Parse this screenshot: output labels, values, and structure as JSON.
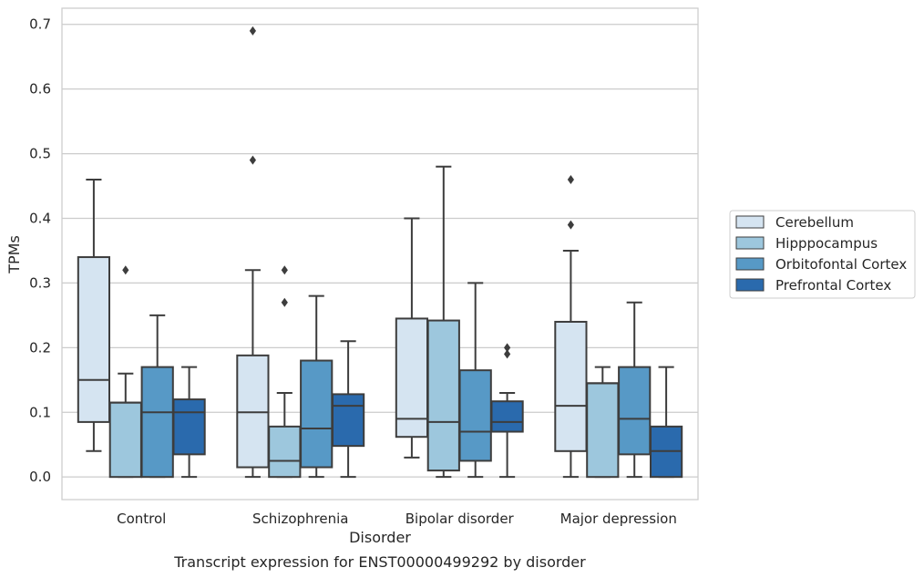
{
  "chart_data": {
    "type": "box",
    "caption": "Transcript expression for ENST00000499292 by disorder",
    "xlabel": "Disorder",
    "ylabel": "TPMs",
    "ylim": [
      -0.035,
      0.725
    ],
    "yticks": [
      "0.0",
      "0.1",
      "0.2",
      "0.3",
      "0.4",
      "0.5",
      "0.6",
      "0.7"
    ],
    "grid": true,
    "legend_position": "right",
    "categories": [
      "Control",
      "Schizophrenia",
      "Bipolar disorder",
      "Major depression"
    ],
    "series": [
      {
        "name": "Cerebellum",
        "color": "#d5e4f1",
        "boxes": [
          {
            "whisker_low": 0.04,
            "q1": 0.085,
            "median": 0.15,
            "q3": 0.34,
            "whisker_high": 0.46,
            "outliers": []
          },
          {
            "whisker_low": 0.0,
            "q1": 0.015,
            "median": 0.1,
            "q3": 0.188,
            "whisker_high": 0.32,
            "outliers": [
              0.49,
              0.69
            ]
          },
          {
            "whisker_low": 0.03,
            "q1": 0.062,
            "median": 0.09,
            "q3": 0.245,
            "whisker_high": 0.4,
            "outliers": []
          },
          {
            "whisker_low": 0.0,
            "q1": 0.04,
            "median": 0.11,
            "q3": 0.24,
            "whisker_high": 0.35,
            "outliers": [
              0.39,
              0.46
            ]
          }
        ]
      },
      {
        "name": "Hipppocampus",
        "color": "#9dc7dd",
        "boxes": [
          {
            "whisker_low": 0.0,
            "q1": 0.0,
            "median": 0.115,
            "q3": 0.115,
            "whisker_high": 0.16,
            "outliers": [
              0.32
            ]
          },
          {
            "whisker_low": 0.0,
            "q1": 0.0,
            "median": 0.025,
            "q3": 0.078,
            "whisker_high": 0.13,
            "outliers": [
              0.27,
              0.32
            ]
          },
          {
            "whisker_low": 0.0,
            "q1": 0.01,
            "median": 0.085,
            "q3": 0.242,
            "whisker_high": 0.48,
            "outliers": []
          },
          {
            "whisker_low": 0.0,
            "q1": 0.0,
            "median": 0.145,
            "q3": 0.145,
            "whisker_high": 0.17,
            "outliers": []
          }
        ]
      },
      {
        "name": "Orbitofontal Cortex",
        "color": "#5799c6",
        "boxes": [
          {
            "whisker_low": 0.0,
            "q1": 0.0,
            "median": 0.1,
            "q3": 0.17,
            "whisker_high": 0.25,
            "outliers": []
          },
          {
            "whisker_low": 0.0,
            "q1": 0.015,
            "median": 0.075,
            "q3": 0.18,
            "whisker_high": 0.28,
            "outliers": []
          },
          {
            "whisker_low": 0.0,
            "q1": 0.025,
            "median": 0.07,
            "q3": 0.165,
            "whisker_high": 0.3,
            "outliers": []
          },
          {
            "whisker_low": 0.0,
            "q1": 0.035,
            "median": 0.09,
            "q3": 0.17,
            "whisker_high": 0.27,
            "outliers": []
          }
        ]
      },
      {
        "name": "Prefrontal Cortex",
        "color": "#2a6aad",
        "boxes": [
          {
            "whisker_low": 0.0,
            "q1": 0.035,
            "median": 0.1,
            "q3": 0.12,
            "whisker_high": 0.17,
            "outliers": []
          },
          {
            "whisker_low": 0.0,
            "q1": 0.048,
            "median": 0.11,
            "q3": 0.128,
            "whisker_high": 0.21,
            "outliers": []
          },
          {
            "whisker_low": 0.0,
            "q1": 0.07,
            "median": 0.085,
            "q3": 0.117,
            "whisker_high": 0.13,
            "outliers": [
              0.19,
              0.2
            ]
          },
          {
            "whisker_low": 0.0,
            "q1": 0.0,
            "median": 0.04,
            "q3": 0.078,
            "whisker_high": 0.17,
            "outliers": []
          }
        ]
      }
    ]
  }
}
